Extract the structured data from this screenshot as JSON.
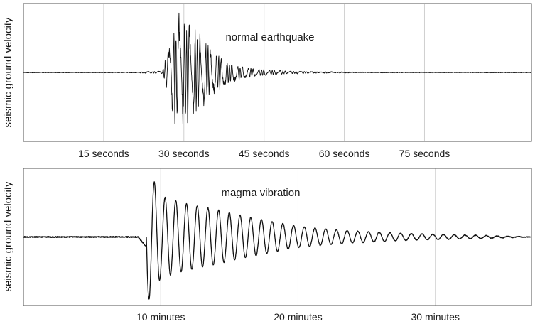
{
  "chart_data": [
    {
      "type": "line",
      "title": "",
      "annotation": "normal earthquake",
      "ylabel": "seismic ground velocity",
      "xlabel": "",
      "xlim": [
        0,
        95
      ],
      "ylim": [
        -1,
        1
      ],
      "grid": true,
      "x_ticks": [
        15,
        30,
        45,
        60,
        75
      ],
      "x_tick_labels": [
        "15 seconds",
        "30 seconds",
        "45 seconds",
        "60 seconds",
        "75 seconds"
      ],
      "series": [
        {
          "x": [
            0,
            10,
            20,
            26,
            28,
            29,
            30,
            31,
            32,
            33,
            34,
            36,
            38,
            40,
            43,
            46,
            50,
            55,
            65,
            80,
            95
          ],
          "y": [
            0,
            0,
            0,
            0.02,
            0.7,
            0.95,
            -0.9,
            0.8,
            -0.7,
            0.6,
            -0.5,
            0.3,
            -0.2,
            0.12,
            -0.06,
            0.04,
            -0.02,
            0.01,
            0,
            0,
            0
          ]
        }
      ]
    },
    {
      "type": "line",
      "title": "",
      "annotation": "magma vibration",
      "ylabel": "seismic ground velocity",
      "xlabel": "",
      "xlim": [
        0,
        37
      ],
      "ylim": [
        -1,
        1
      ],
      "grid": true,
      "x_ticks": [
        10,
        20,
        30
      ],
      "x_tick_labels": [
        "10 minutes",
        "20 minutes",
        "30 minutes"
      ],
      "series": [
        {
          "x": [
            0,
            4,
            8,
            8.9,
            9.0,
            9.2,
            9.5,
            10,
            12,
            14,
            16,
            18,
            20,
            22,
            24,
            26,
            28,
            30,
            32,
            34,
            37
          ],
          "y": [
            0,
            0,
            -0.02,
            -0.08,
            -0.95,
            0.95,
            -0.85,
            0.62,
            0.5,
            0.42,
            0.32,
            0.24,
            0.16,
            0.12,
            0.09,
            0.07,
            0.05,
            0.04,
            0.03,
            0.02,
            0
          ]
        }
      ]
    }
  ]
}
